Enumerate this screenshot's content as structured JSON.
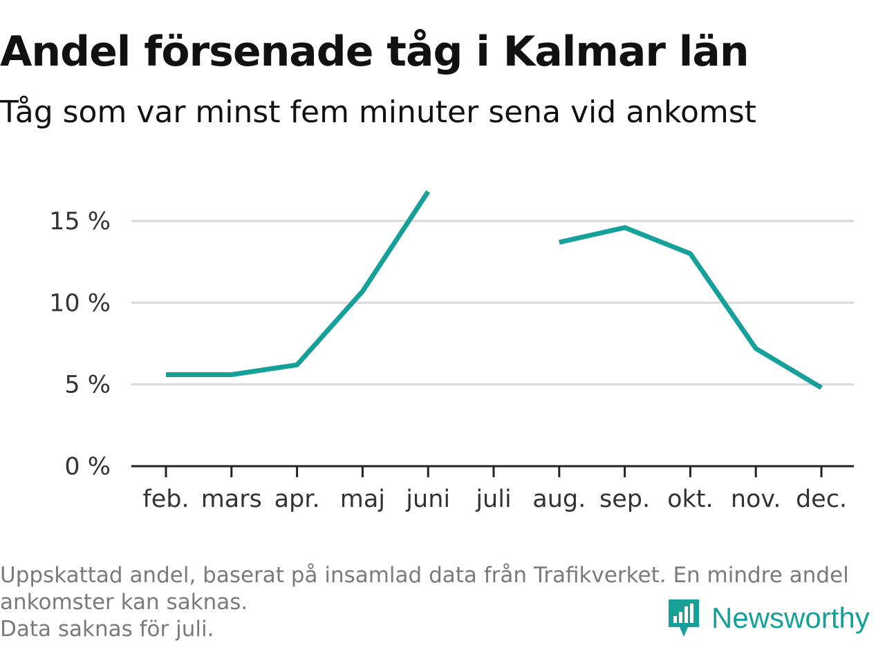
{
  "chart_data": {
    "type": "line",
    "title": "Andel försenade tåg i Kalmar län",
    "subtitle": "Tåg som var minst fem minuter sena vid ankomst",
    "categories": [
      "feb.",
      "mars",
      "apr.",
      "maj",
      "juni",
      "juli",
      "aug.",
      "sep.",
      "okt.",
      "nov.",
      "dec."
    ],
    "series": [
      {
        "values": [
          5.6,
          5.6,
          6.2,
          10.7,
          16.8,
          null,
          13.7,
          14.6,
          13.0,
          7.2,
          4.8
        ]
      }
    ],
    "y_ticks": [
      0,
      5,
      10,
      15
    ],
    "y_tick_labels": [
      "0 %",
      "5 %",
      "10 %",
      "15 %"
    ],
    "ylim": [
      0,
      16.8
    ],
    "grid": true,
    "colors": {
      "line": "#15a09a",
      "grid": "#d9d9d9",
      "axis": "#222222"
    }
  },
  "footer": {
    "note_line1": "Uppskattad andel, baserat på insamlad data från Trafikverket. En mindre andel",
    "note_line2": "ankomster kan saknas.",
    "note_line3": "Data saknas för juli."
  },
  "brand": {
    "name": "Newsworthy",
    "icon": "newsworthy-logo-icon"
  }
}
